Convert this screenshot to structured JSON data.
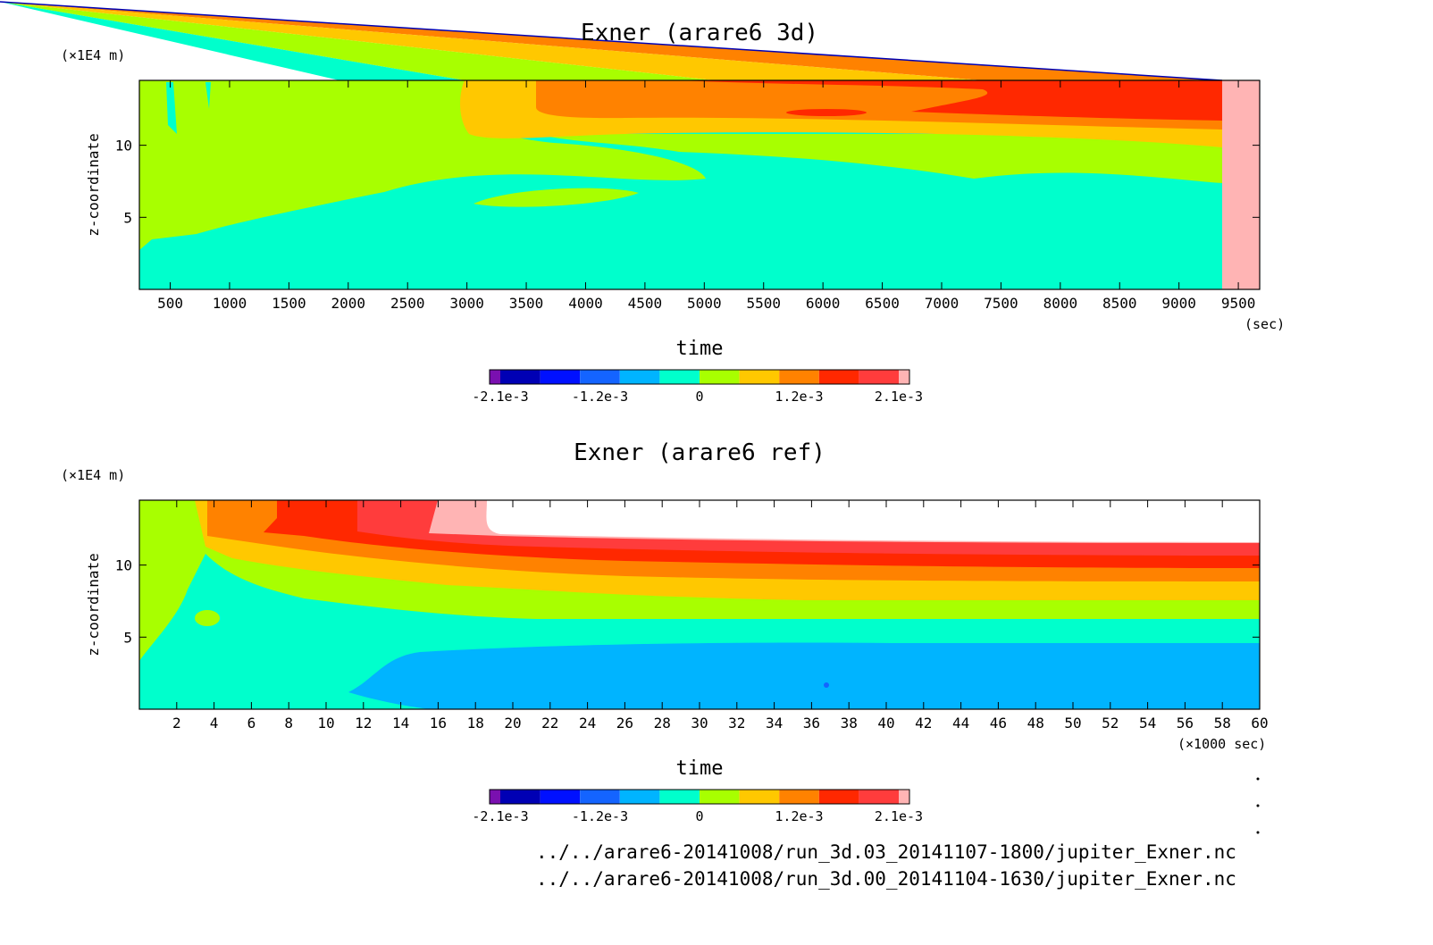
{
  "colorbar": {
    "colors": [
      "#7a10b0",
      "#0000b4",
      "#0010ff",
      "#1464ff",
      "#00b4ff",
      "#00ffcc",
      "#a8ff00",
      "#ffc800",
      "#ff8200",
      "#ff2800",
      "#ff3c3c",
      "#ffb4b4"
    ],
    "tick_labels": [
      "-2.1e-3",
      "-1.2e-3",
      "0",
      "1.2e-3",
      "2.1e-3"
    ]
  },
  "footer_lines": [
    "../../arare6-20141008/run_3d.03_20141107-1800/jupiter_Exner.nc",
    "../../arare6-20141008/run_3d.00_20141104-1630/jupiter_Exner.nc"
  ],
  "chart_data": [
    {
      "type": "heatmap",
      "title": "Exner (arare6 3d)",
      "xlabel": "time",
      "xunit": "(sec)",
      "ylabel": "z-coordinate",
      "yunit": "(×1E4 m)",
      "xlim": [
        240,
        9680
      ],
      "ylim": [
        0,
        14.5
      ],
      "x_ticks": [
        500,
        1000,
        1500,
        2000,
        2500,
        3000,
        3500,
        4000,
        4500,
        5000,
        5500,
        6000,
        6500,
        7000,
        7500,
        8000,
        8500,
        9000,
        9500
      ],
      "y_ticks": [
        5,
        10
      ],
      "bands_description": "green (0 to 4e-4) near surface-to-top early; cyan (-4e-4 to 0) below ~4-8; yellow/orange/red above ~10 after t=3000; data ends near t=9350"
    },
    {
      "type": "heatmap",
      "title": "Exner (arare6 ref)",
      "xlabel": "time",
      "xunit": "(×1000 sec)",
      "ylabel": "z-coordinate",
      "yunit": "(×1E4 m)",
      "xlim": [
        0,
        60
      ],
      "ylim": [
        0,
        14.5
      ],
      "x_ticks": [
        2,
        4,
        6,
        8,
        10,
        12,
        14,
        16,
        18,
        20,
        22,
        24,
        26,
        28,
        30,
        32,
        34,
        36,
        38,
        40,
        42,
        44,
        46,
        48,
        50,
        52,
        54,
        56,
        58,
        60
      ],
      "y_ticks": [
        5,
        10
      ],
      "bands_description": "layered steady state after t~30: blue below ~4.8, cyan 4.8-6.4, green 6.4-7.7, yellow 7.7-9.0, orange 9.0-10.2, red 10.2-11.2, light red 11.2-12.0, white above"
    }
  ]
}
